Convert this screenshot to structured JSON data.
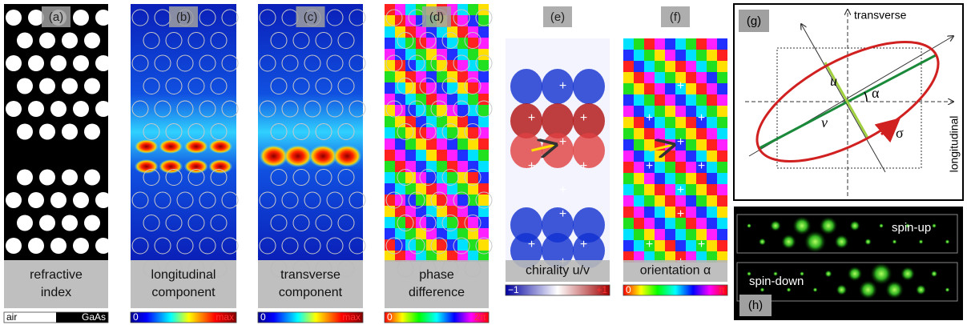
{
  "panels": [
    {
      "letter": "(a)",
      "label": [
        "refractive",
        "index"
      ],
      "scale": [
        "air",
        "GaAs"
      ]
    },
    {
      "letter": "(b)",
      "label": [
        "longitudinal",
        "component"
      ],
      "scale": [
        "0",
        "max"
      ]
    },
    {
      "letter": "(c)",
      "label": [
        "transverse",
        "component"
      ],
      "scale": [
        "0",
        "max"
      ]
    },
    {
      "letter": "(d)",
      "label": [
        "phase",
        "difference"
      ],
      "scale": [
        "0",
        "2π"
      ]
    },
    {
      "letter": "(e)",
      "label": [
        "chirality u/v"
      ],
      "scale": [
        "−1",
        "+1"
      ]
    },
    {
      "letter": "(f)",
      "label": [
        "orientation α"
      ],
      "scale": [
        "0",
        "π"
      ]
    }
  ],
  "diagram": {
    "letter": "(g)",
    "axis_transverse": "transverse",
    "axis_longitudinal": "longitudinal",
    "u": "u",
    "v": "v",
    "alpha": "α",
    "sigma": "σ"
  },
  "spin": {
    "letter": "(h)",
    "up": "spin-up",
    "down": "spin-down"
  }
}
